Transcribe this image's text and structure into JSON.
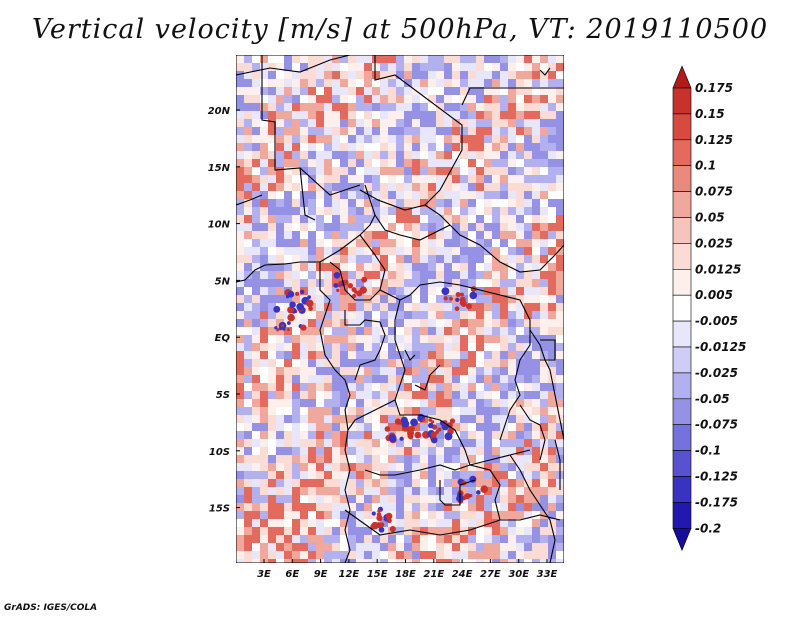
{
  "title": "Vertical velocity [m/s] at 500hPa, VT: 2019110500",
  "footer": "GrADS: IGES/COLA",
  "map": {
    "lat_ticks": [
      "20N",
      "15N",
      "10N",
      "5N",
      "EQ",
      "5S",
      "10S",
      "15S"
    ],
    "lon_ticks": [
      "3E",
      "6E",
      "9E",
      "12E",
      "15E",
      "18E",
      "21E",
      "24E",
      "27E",
      "30E",
      "33E"
    ]
  },
  "colorbar": {
    "labels": [
      "0.175",
      "0.15",
      "0.125",
      "0.1",
      "0.075",
      "0.05",
      "0.025",
      "0.0125",
      "0.005",
      "-0.005",
      "-0.0125",
      "-0.025",
      "-0.05",
      "-0.075",
      "-0.1",
      "-0.125",
      "-0.175",
      "-0.2"
    ],
    "colors": [
      "#b51a1a",
      "#c8322c",
      "#d84a40",
      "#e36a5c",
      "#ea8a7c",
      "#f0a89c",
      "#f5c4ba",
      "#fadcd4",
      "#fdf0ec",
      "#ffffff",
      "#e8e6fb",
      "#cfcdf6",
      "#b2b0ee",
      "#9592e5",
      "#7672dc",
      "#5852d0",
      "#3a33c2",
      "#2218b0",
      "#160c9c"
    ]
  }
}
